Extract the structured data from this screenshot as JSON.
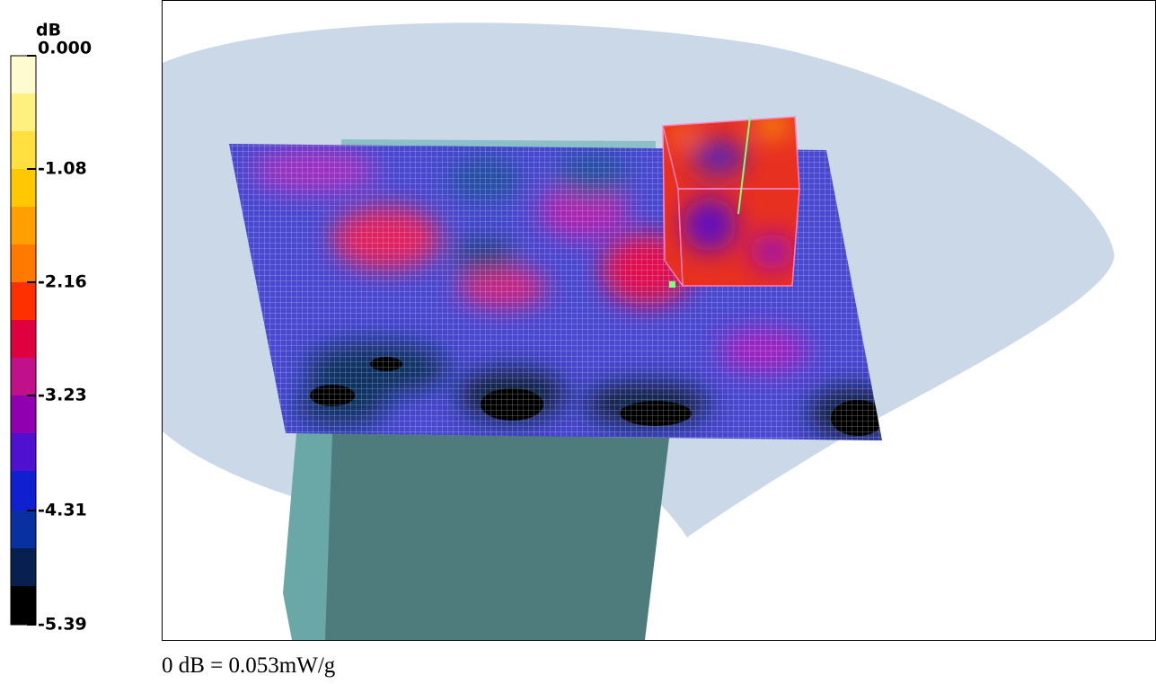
{
  "colorbar": {
    "unit": "dB",
    "ticks": [
      "0.000",
      "-1.08",
      "-2.16",
      "-3.23",
      "-4.31",
      "-5.39"
    ]
  },
  "footnote": "0 dB = 0.053mW/g"
}
